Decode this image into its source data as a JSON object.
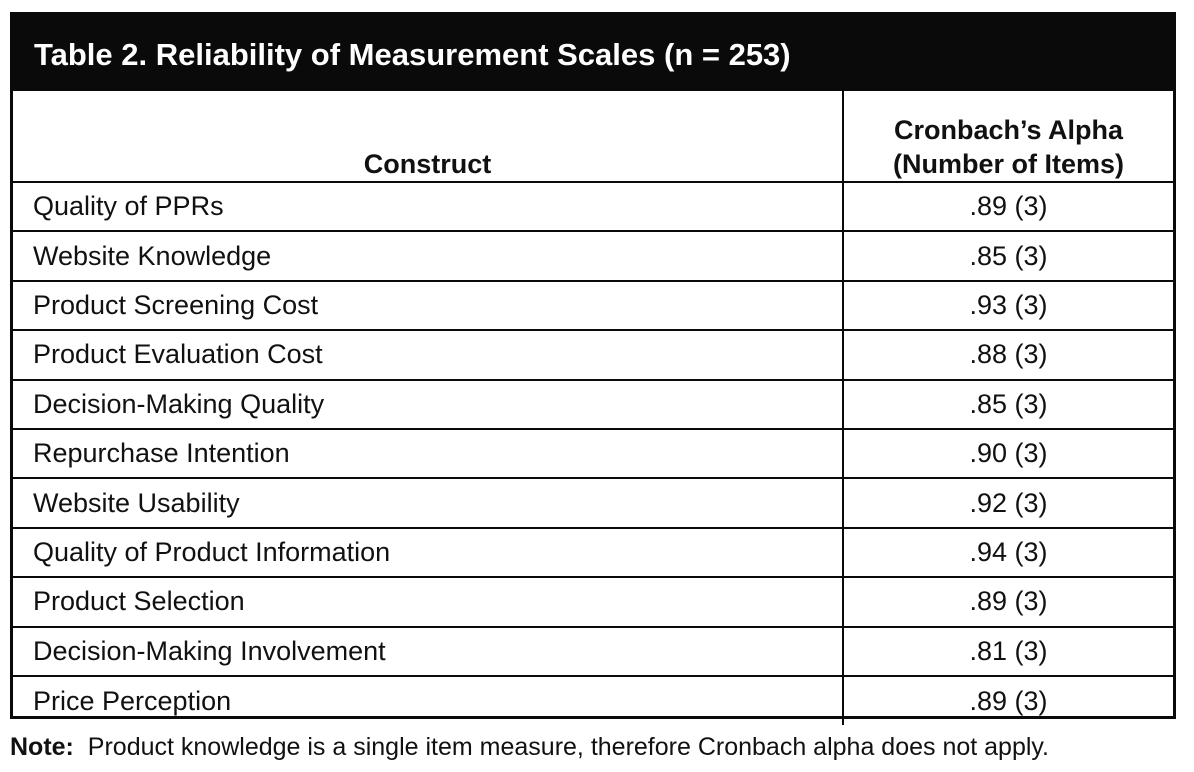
{
  "table": {
    "title": "Table 2.  Reliability of Measurement Scales (n = 253)",
    "header": {
      "construct": "Construct",
      "alpha_line1": "Cronbach’s Alpha",
      "alpha_line2": "(Number of Items)"
    },
    "rows": [
      {
        "construct": "Quality of PPRs",
        "alpha": ".89 (3)"
      },
      {
        "construct": "Website Knowledge",
        "alpha": ".85 (3)"
      },
      {
        "construct": "Product Screening Cost",
        "alpha": ".93 (3)"
      },
      {
        "construct": "Product Evaluation Cost",
        "alpha": ".88 (3)"
      },
      {
        "construct": "Decision-Making Quality",
        "alpha": ".85 (3)"
      },
      {
        "construct": "Repurchase Intention",
        "alpha": ".90 (3)"
      },
      {
        "construct": "Website Usability",
        "alpha": ".92 (3)"
      },
      {
        "construct": "Quality of Product Information",
        "alpha": ".94 (3)"
      },
      {
        "construct": "Product Selection",
        "alpha": ".89 (3)"
      },
      {
        "construct": "Decision-Making Involvement",
        "alpha": ".81 (3)"
      },
      {
        "construct": "Price Perception",
        "alpha": ".89 (3)"
      }
    ]
  },
  "note": {
    "label": "Note:",
    "text": "Product knowledge is a single item measure, therefore Cronbach alpha does not apply."
  }
}
